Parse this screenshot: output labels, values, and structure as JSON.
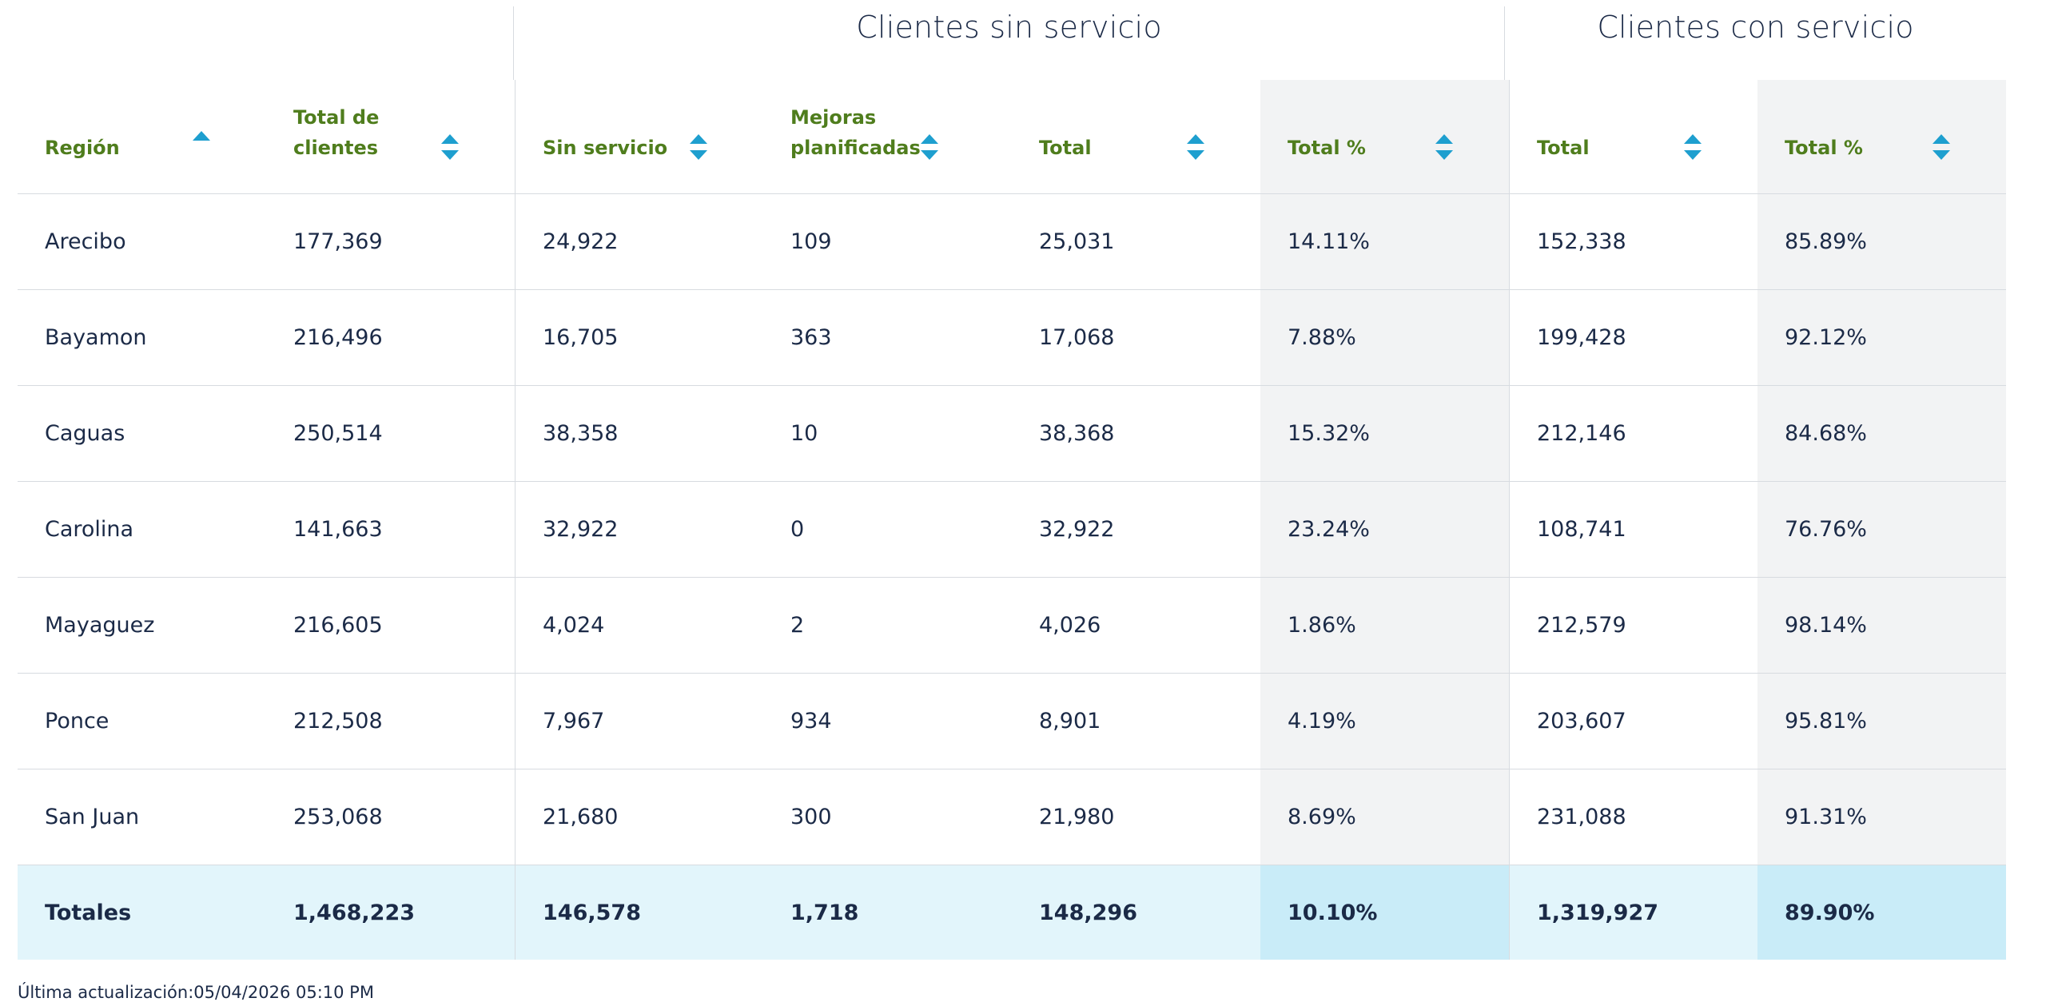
{
  "groups": {
    "sin_servicio": "Clientes sin servicio",
    "con_servicio": "Clientes con servicio"
  },
  "headers": [
    "Región",
    "Total de clientes",
    "Sin servicio",
    "Mejoras planificadas",
    "Total",
    "Total %",
    "Total",
    "Total %"
  ],
  "rows": [
    [
      "Arecibo",
      "177,369",
      "24,922",
      "109",
      "25,031",
      "14.11%",
      "152,338",
      "85.89%"
    ],
    [
      "Bayamon",
      "216,496",
      "16,705",
      "363",
      "17,068",
      "7.88%",
      "199,428",
      "92.12%"
    ],
    [
      "Caguas",
      "250,514",
      "38,358",
      "10",
      "38,368",
      "15.32%",
      "212,146",
      "84.68%"
    ],
    [
      "Carolina",
      "141,663",
      "32,922",
      "0",
      "32,922",
      "23.24%",
      "108,741",
      "76.76%"
    ],
    [
      "Mayaguez",
      "216,605",
      "4,024",
      "2",
      "4,026",
      "1.86%",
      "212,579",
      "98.14%"
    ],
    [
      "Ponce",
      "212,508",
      "7,967",
      "934",
      "8,901",
      "4.19%",
      "203,607",
      "95.81%"
    ],
    [
      "San Juan",
      "253,068",
      "21,680",
      "300",
      "21,980",
      "8.69%",
      "231,088",
      "91.31%"
    ]
  ],
  "totals": [
    "Totales",
    "1,468,223",
    "146,578",
    "1,718",
    "148,296",
    "10.10%",
    "1,319,927",
    "89.90%"
  ],
  "footer": "Última actualización:05/04/2026 05:10 PM",
  "colors": {
    "header_text": "#4f7d1d",
    "sort_icon": "#1e9fcf",
    "shaded_column": "#f2f3f4",
    "totals_row": "#e2f5fb",
    "totals_row_shaded": "#c9ecf8"
  }
}
